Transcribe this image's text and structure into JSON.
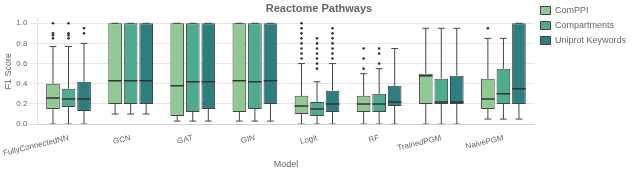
{
  "chart_data": {
    "type": "box",
    "title": "Reactome Pathways",
    "xlabel": "Model",
    "ylabel": "F1 Score",
    "categories": [
      "FullyConnectedNN",
      "GCN",
      "GAT",
      "GIN",
      "Logit",
      "RF",
      "TrainedPGM",
      "NaivePGM"
    ],
    "ylim": [
      0.0,
      1.05
    ],
    "yticks": [
      {
        "value": 0.0,
        "label": "0.0"
      },
      0.2,
      0.4,
      0.6,
      0.8,
      {
        "value": 1.0,
        "label": "1.0"
      }
    ],
    "grid": true,
    "legend": "right",
    "series": [
      {
        "name": "ComPPI",
        "color": "#90c993",
        "values": [
          {
            "whislo": 0.0,
            "q1": 0.15,
            "med": 0.26,
            "q3": 0.4,
            "whishi": 0.77,
            "fliers": [
              0.85,
              0.88,
              0.9,
              1.0
            ]
          },
          {
            "whislo": 0.1,
            "q1": 0.2,
            "med": 0.43,
            "q3": 1.0,
            "whishi": 1.0,
            "fliers": []
          },
          {
            "whislo": 0.03,
            "q1": 0.08,
            "med": 0.38,
            "q3": 1.0,
            "whishi": 1.0,
            "fliers": []
          },
          {
            "whislo": 0.03,
            "q1": 0.12,
            "med": 0.43,
            "q3": 1.0,
            "whishi": 1.0,
            "fliers": []
          },
          {
            "whislo": 0.0,
            "q1": 0.1,
            "med": 0.18,
            "q3": 0.28,
            "whishi": 0.6,
            "fliers": [
              0.65,
              0.7,
              0.75,
              0.8,
              0.85,
              0.9,
              0.95,
              1.0
            ]
          },
          {
            "whislo": 0.0,
            "q1": 0.12,
            "med": 0.2,
            "q3": 0.28,
            "whishi": 0.5,
            "fliers": [
              0.55,
              0.65,
              0.75
            ]
          },
          {
            "whislo": 0.0,
            "q1": 0.2,
            "med": 0.48,
            "q3": 0.5,
            "whishi": 0.95,
            "fliers": []
          },
          {
            "whislo": 0.05,
            "q1": 0.15,
            "med": 0.25,
            "q3": 0.45,
            "whishi": 0.85,
            "fliers": [
              0.95
            ]
          }
        ]
      },
      {
        "name": "Compartments",
        "color": "#4dab8e",
        "values": [
          {
            "whislo": 0.0,
            "q1": 0.17,
            "med": 0.25,
            "q3": 0.35,
            "whishi": 0.77,
            "fliers": [
              0.85,
              0.88,
              0.9,
              1.0
            ]
          },
          {
            "whislo": 0.1,
            "q1": 0.2,
            "med": 0.43,
            "q3": 1.0,
            "whishi": 1.0,
            "fliers": []
          },
          {
            "whislo": 0.03,
            "q1": 0.12,
            "med": 0.42,
            "q3": 1.0,
            "whishi": 1.0,
            "fliers": []
          },
          {
            "whislo": 0.03,
            "q1": 0.15,
            "med": 0.42,
            "q3": 1.0,
            "whishi": 1.0,
            "fliers": []
          },
          {
            "whislo": 0.0,
            "q1": 0.08,
            "med": 0.15,
            "q3": 0.22,
            "whishi": 0.42,
            "fliers": [
              0.55,
              0.6,
              0.65,
              0.7,
              0.75,
              0.8,
              0.85
            ]
          },
          {
            "whislo": 0.0,
            "q1": 0.12,
            "med": 0.2,
            "q3": 0.3,
            "whishi": 0.55,
            "fliers": [
              0.6,
              0.7,
              0.75
            ]
          },
          {
            "whislo": 0.0,
            "q1": 0.2,
            "med": 0.22,
            "q3": 0.45,
            "whishi": 0.95,
            "fliers": []
          },
          {
            "whislo": 0.05,
            "q1": 0.2,
            "med": 0.3,
            "q3": 0.55,
            "whishi": 0.85,
            "fliers": []
          }
        ]
      },
      {
        "name": "Uniprot Keywords",
        "color": "#2d7e7e",
        "values": [
          {
            "whislo": 0.0,
            "q1": 0.13,
            "med": 0.25,
            "q3": 0.42,
            "whishi": 0.8,
            "fliers": [
              0.9,
              0.95
            ]
          },
          {
            "whislo": 0.1,
            "q1": 0.2,
            "med": 0.43,
            "q3": 1.0,
            "whishi": 1.0,
            "fliers": []
          },
          {
            "whislo": 0.03,
            "q1": 0.15,
            "med": 0.42,
            "q3": 1.0,
            "whishi": 1.0,
            "fliers": []
          },
          {
            "whislo": 0.03,
            "q1": 0.2,
            "med": 0.43,
            "q3": 1.0,
            "whishi": 1.0,
            "fliers": []
          },
          {
            "whislo": 0.0,
            "q1": 0.12,
            "med": 0.2,
            "q3": 0.33,
            "whishi": 0.6,
            "fliers": [
              0.65,
              0.7,
              0.75,
              0.8,
              0.85,
              0.9,
              0.95
            ]
          },
          {
            "whislo": 0.0,
            "q1": 0.18,
            "med": 0.22,
            "q3": 0.38,
            "whishi": 0.75,
            "fliers": []
          },
          {
            "whislo": 0.0,
            "q1": 0.2,
            "med": 0.22,
            "q3": 0.48,
            "whishi": 0.95,
            "fliers": []
          },
          {
            "whislo": 0.05,
            "q1": 0.2,
            "med": 0.35,
            "q3": 1.0,
            "whishi": 1.0,
            "fliers": []
          }
        ]
      }
    ]
  }
}
